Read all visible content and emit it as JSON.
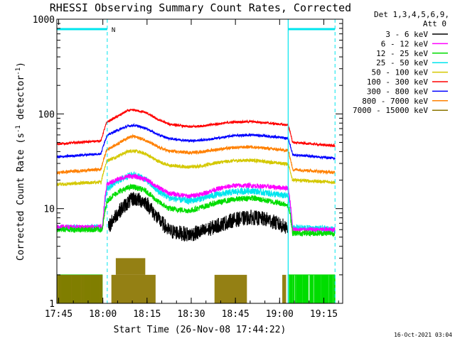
{
  "chart_data": {
    "type": "line",
    "title": "RHESSI Observing Summary Count Rates, Corrected",
    "xlabel": "Start Time (26-Nov-08 17:44:22)",
    "ylabel": "Corrected Count Rate (s",
    "ylabel_sup1": "-1",
    "ylabel_mid": " detector",
    "ylabel_sup2": "-1",
    "ylabel_end": ")",
    "yscale": "log",
    "ylim": [
      1,
      1000
    ],
    "xlim_minutes": [
      0,
      97
    ],
    "x_tick_minutes": [
      0.6,
      15.6,
      30.6,
      45.6,
      60.6,
      75.6,
      90.6
    ],
    "x_tick_labels": [
      "17:45",
      "18:00",
      "18:15",
      "18:30",
      "18:45",
      "19:00",
      "19:15"
    ],
    "y_tick_values": [
      1,
      10,
      100,
      1000
    ],
    "y_tick_labels": [
      "1",
      "10",
      "100",
      "1000"
    ],
    "legend_header": [
      "Det 1,3,4,5,6,9,",
      "Att 0"
    ],
    "timestamp": "16-Oct-2021 03:04",
    "flag_letter": "N",
    "day_start_minutes": 17.1,
    "day_end_minutes": 78.5,
    "night_bar_segments": [
      [
        0,
        17.1
      ],
      [
        78.5,
        94.4
      ]
    ],
    "series": [
      {
        "name": "3 - 6 keV",
        "color": "#000000",
        "mode": "profile",
        "noise": 0.08,
        "profile": [
          [
            17.5,
            6.2
          ],
          [
            20,
            8.5
          ],
          [
            24,
            11.5
          ],
          [
            26,
            12.8
          ],
          [
            30,
            11.8
          ],
          [
            34,
            8.0
          ],
          [
            38,
            5.8
          ],
          [
            45,
            5.3
          ],
          [
            50,
            5.8
          ],
          [
            54,
            6.5
          ],
          [
            60,
            7.6
          ],
          [
            66,
            8.1
          ],
          [
            72,
            7.6
          ],
          [
            75,
            6.9
          ],
          [
            78.5,
            6.2
          ]
        ]
      },
      {
        "name": "6 - 12 keV",
        "color": "#ff00ff",
        "mode": "profile",
        "noise": 0.025,
        "profile": [
          [
            0,
            6.4
          ],
          [
            15.5,
            6.4
          ],
          [
            17,
            18
          ],
          [
            20,
            20
          ],
          [
            24,
            22
          ],
          [
            26,
            22
          ],
          [
            30,
            20.5
          ],
          [
            34,
            17
          ],
          [
            38,
            14.5
          ],
          [
            45,
            13.5
          ],
          [
            50,
            14.5
          ],
          [
            54,
            16
          ],
          [
            60,
            17.5
          ],
          [
            66,
            17.5
          ],
          [
            72,
            17
          ],
          [
            78.5,
            16.5
          ],
          [
            80,
            6
          ],
          [
            94.4,
            6
          ]
        ]
      },
      {
        "name": "12 - 25 keV",
        "color": "#00dd00",
        "mode": "profile",
        "noise": 0.03,
        "profile": [
          [
            0,
            6
          ],
          [
            15.5,
            6
          ],
          [
            17,
            12
          ],
          [
            20,
            14.5
          ],
          [
            24,
            16.5
          ],
          [
            26,
            17
          ],
          [
            30,
            15.5
          ],
          [
            34,
            12
          ],
          [
            38,
            10
          ],
          [
            45,
            9.5
          ],
          [
            50,
            10.5
          ],
          [
            54,
            11.5
          ],
          [
            60,
            12.5
          ],
          [
            66,
            13
          ],
          [
            72,
            12
          ],
          [
            78.5,
            11
          ],
          [
            80,
            5.5
          ],
          [
            94.4,
            5.5
          ]
        ]
      },
      {
        "name": "25 - 50 keV",
        "color": "#00e5ee",
        "mode": "profile",
        "noise": 0.035,
        "profile": [
          [
            0,
            6.3
          ],
          [
            15.5,
            6.3
          ],
          [
            17,
            16
          ],
          [
            20,
            19
          ],
          [
            24,
            22
          ],
          [
            26,
            23
          ],
          [
            30,
            20.5
          ],
          [
            34,
            15.5
          ],
          [
            38,
            13
          ],
          [
            45,
            12
          ],
          [
            50,
            13
          ],
          [
            54,
            14
          ],
          [
            60,
            15
          ],
          [
            66,
            15.5
          ],
          [
            72,
            14.5
          ],
          [
            78.5,
            13.5
          ],
          [
            80,
            6.3
          ],
          [
            94.4,
            6
          ]
        ]
      },
      {
        "name": "50 - 100 keV",
        "color": "#d4c800",
        "mode": "profile",
        "noise": 0.018,
        "profile": [
          [
            0,
            18
          ],
          [
            15,
            19
          ],
          [
            17,
            32
          ],
          [
            20,
            35
          ],
          [
            24,
            40
          ],
          [
            26,
            41
          ],
          [
            30,
            38
          ],
          [
            34,
            32
          ],
          [
            38,
            28.5
          ],
          [
            45,
            27.5
          ],
          [
            50,
            28.5
          ],
          [
            54,
            30.5
          ],
          [
            60,
            32
          ],
          [
            66,
            32.5
          ],
          [
            72,
            31
          ],
          [
            78.5,
            29.5
          ],
          [
            80,
            20
          ],
          [
            94.4,
            19
          ]
        ]
      },
      {
        "name": "100 - 300 keV",
        "color": "#ff0000",
        "mode": "profile",
        "noise": 0.012,
        "profile": [
          [
            0,
            48
          ],
          [
            15,
            52
          ],
          [
            17,
            82
          ],
          [
            20,
            92
          ],
          [
            24,
            108
          ],
          [
            26,
            110
          ],
          [
            30,
            104
          ],
          [
            34,
            88
          ],
          [
            38,
            78
          ],
          [
            45,
            73
          ],
          [
            50,
            75
          ],
          [
            54,
            78
          ],
          [
            60,
            82
          ],
          [
            66,
            83
          ],
          [
            72,
            80
          ],
          [
            78.5,
            76
          ],
          [
            80,
            50
          ],
          [
            94.4,
            46
          ]
        ]
      },
      {
        "name": "300 - 800 keV",
        "color": "#0000ff",
        "mode": "profile",
        "noise": 0.013,
        "profile": [
          [
            0,
            35
          ],
          [
            15,
            38
          ],
          [
            17,
            59
          ],
          [
            20,
            66
          ],
          [
            24,
            74
          ],
          [
            26,
            76
          ],
          [
            30,
            71
          ],
          [
            34,
            61
          ],
          [
            38,
            55
          ],
          [
            45,
            52
          ],
          [
            50,
            53
          ],
          [
            54,
            55
          ],
          [
            60,
            59
          ],
          [
            66,
            60
          ],
          [
            72,
            58
          ],
          [
            78.5,
            55
          ],
          [
            80,
            37
          ],
          [
            94.4,
            34
          ]
        ]
      },
      {
        "name": "800 - 7000 keV",
        "color": "#ff8000",
        "mode": "profile",
        "noise": 0.016,
        "profile": [
          [
            0,
            24
          ],
          [
            15,
            26
          ],
          [
            17,
            42
          ],
          [
            20,
            47
          ],
          [
            24,
            56
          ],
          [
            26,
            58
          ],
          [
            30,
            53
          ],
          [
            34,
            45
          ],
          [
            38,
            40.5
          ],
          [
            45,
            39
          ],
          [
            50,
            40
          ],
          [
            54,
            42
          ],
          [
            60,
            44
          ],
          [
            66,
            45
          ],
          [
            72,
            43
          ],
          [
            78.5,
            41
          ],
          [
            80,
            26
          ],
          [
            94.4,
            24
          ]
        ]
      },
      {
        "name": "7000 - 15000 keV",
        "color": "#8b7500",
        "mode": "steps",
        "segments": [
          [
            0,
            15.5,
            2
          ],
          [
            20,
            30,
            3
          ],
          [
            18.5,
            33.5,
            2
          ],
          [
            53.5,
            64.5,
            2
          ],
          [
            76.5,
            77.8,
            2
          ]
        ]
      }
    ],
    "low_band_spikes": [
      [
        0,
        15.5
      ],
      [
        78.5,
        94.4
      ]
    ]
  }
}
